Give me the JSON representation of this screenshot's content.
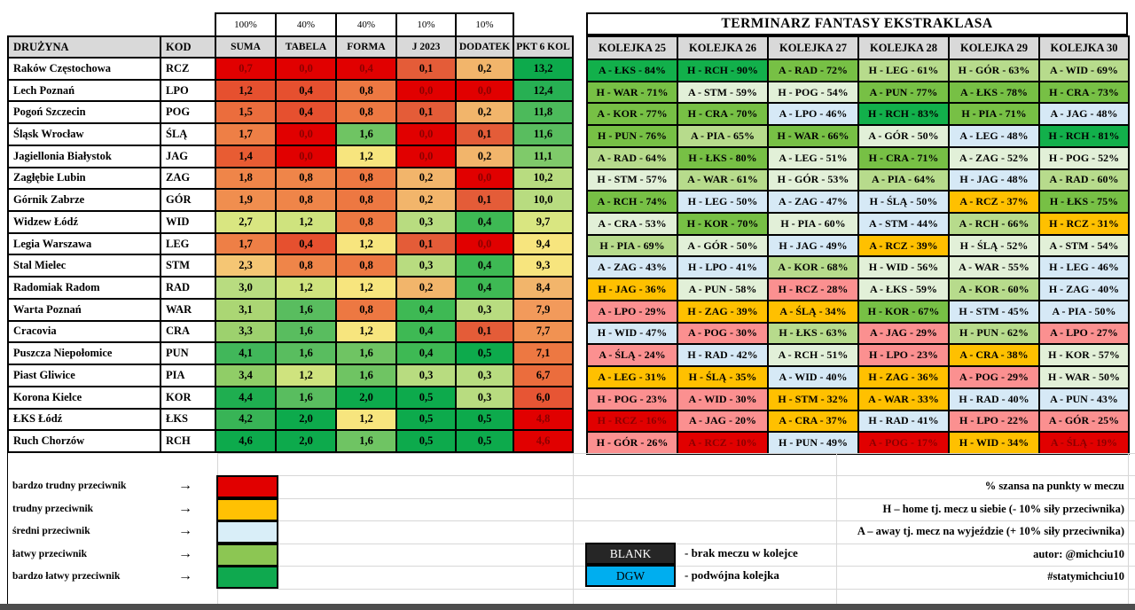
{
  "palette": {
    "RD": "#e10000",
    "R1": "#e75534",
    "R2": "#e6502f",
    "R3": "#e45c38",
    "R4": "#e85c33",
    "O1": "#eb6d3d",
    "O2": "#ed7842",
    "O3": "#ee7f46",
    "O4": "#ef8549",
    "O5": "#f08e4f",
    "O6": "#f19252",
    "O7": "#f29a5b",
    "T1": "#f2b56b",
    "T2": "#f5c674",
    "Y1": "#f7e57e",
    "Y2": "#d9e681",
    "Y3": "#cfe37e",
    "L1": "#b8dc80",
    "L2": "#abd674",
    "L3": "#9dd16e",
    "L4": "#90cd67",
    "L5": "#7fca6a",
    "G1": "#6fc463",
    "G2": "#59bd5f",
    "G3": "#4cba5b",
    "G4": "#3eb954",
    "G5": "#41b75a",
    "G6": "#38b456",
    "G7": "#27b053",
    "G8": "#1fae50",
    "DG": "#0daa4c",
    "SG": "#12b04b",
    "AG": "#77c045",
    "LG": "#b7db8c",
    "PG": "#e2f0d8",
    "BL": "#d6e9f6",
    "AM": "#ffc000",
    "PK": "#fb9090",
    "RR": "#e10000",
    "dark_text": "#8b0000",
    "header_bg": "#d9d9d9"
  },
  "weights": [
    "100%",
    "40%",
    "40%",
    "10%",
    "10%"
  ],
  "left_table": {
    "headers": [
      "DRUŻYNA",
      "KOD",
      "SUMA",
      "TABELA",
      "FORMA",
      "J 2023",
      "DODATEK",
      "PKT 6 KOL"
    ],
    "rows": [
      {
        "team": "Raków Częstochowa",
        "kod": "RCZ",
        "vals": [
          [
            "0,7",
            "RD"
          ],
          [
            "0,0",
            "RD"
          ],
          [
            "0,4",
            "RD"
          ],
          [
            "0,1",
            "R3"
          ],
          [
            "0,2",
            "T1"
          ],
          [
            "13,2",
            "DG"
          ]
        ]
      },
      {
        "team": "Lech Poznań",
        "kod": "LPO",
        "vals": [
          [
            "1,2",
            "R2"
          ],
          [
            "0,4",
            "R2"
          ],
          [
            "0,8",
            "O2"
          ],
          [
            "0,0",
            "RD"
          ],
          [
            "0,0",
            "RD"
          ],
          [
            "12,4",
            "G7"
          ]
        ]
      },
      {
        "team": "Pogoń Szczecin",
        "kod": "POG",
        "vals": [
          [
            "1,5",
            "O1"
          ],
          [
            "0,4",
            "R2"
          ],
          [
            "0,8",
            "O2"
          ],
          [
            "0,1",
            "R3"
          ],
          [
            "0,2",
            "T1"
          ],
          [
            "11,8",
            "G3"
          ]
        ]
      },
      {
        "team": "Śląsk Wrocław",
        "kod": "ŚLĄ",
        "vals": [
          [
            "1,7",
            "O3"
          ],
          [
            "0,0",
            "RD"
          ],
          [
            "1,6",
            "G1"
          ],
          [
            "0,0",
            "RD"
          ],
          [
            "0,1",
            "R3"
          ],
          [
            "11,6",
            "G2"
          ]
        ]
      },
      {
        "team": "Jagiellonia Białystok",
        "kod": "JAG",
        "vals": [
          [
            "1,4",
            "R4"
          ],
          [
            "0,0",
            "RD"
          ],
          [
            "1,2",
            "Y1"
          ],
          [
            "0,0",
            "RD"
          ],
          [
            "0,2",
            "T1"
          ],
          [
            "11,1",
            "L5"
          ]
        ]
      },
      {
        "team": "Zagłębie Lubin",
        "kod": "ZAG",
        "vals": [
          [
            "1,8",
            "O4"
          ],
          [
            "0,8",
            "O4"
          ],
          [
            "0,8",
            "O2"
          ],
          [
            "0,2",
            "T1"
          ],
          [
            "0,0",
            "RD"
          ],
          [
            "10,2",
            "L1"
          ]
        ]
      },
      {
        "team": "Górnik Zabrze",
        "kod": "GÓR",
        "vals": [
          [
            "1,9",
            "O5"
          ],
          [
            "0,8",
            "O4"
          ],
          [
            "0,8",
            "O2"
          ],
          [
            "0,2",
            "T1"
          ],
          [
            "0,1",
            "R3"
          ],
          [
            "10,0",
            "L1"
          ]
        ]
      },
      {
        "team": "Widzew Łódź",
        "kod": "WID",
        "vals": [
          [
            "2,7",
            "Y2"
          ],
          [
            "1,2",
            "Y3"
          ],
          [
            "0,8",
            "O2"
          ],
          [
            "0,3",
            "L1"
          ],
          [
            "0,4",
            "G4"
          ],
          [
            "9,7",
            "Y2"
          ]
        ]
      },
      {
        "team": "Legia Warszawa",
        "kod": "LEG",
        "vals": [
          [
            "1,7",
            "O3"
          ],
          [
            "0,4",
            "R2"
          ],
          [
            "1,2",
            "Y1"
          ],
          [
            "0,1",
            "R3"
          ],
          [
            "0,0",
            "RD"
          ],
          [
            "9,4",
            "Y1"
          ]
        ]
      },
      {
        "team": "Stal Mielec",
        "kod": "STM",
        "vals": [
          [
            "2,3",
            "T2"
          ],
          [
            "0,8",
            "O4"
          ],
          [
            "0,8",
            "O2"
          ],
          [
            "0,3",
            "L1"
          ],
          [
            "0,4",
            "G4"
          ],
          [
            "9,3",
            "Y1"
          ]
        ]
      },
      {
        "team": "Radomiak Radom",
        "kod": "RAD",
        "vals": [
          [
            "3,0",
            "L1"
          ],
          [
            "1,2",
            "Y3"
          ],
          [
            "1,2",
            "Y1"
          ],
          [
            "0,2",
            "T1"
          ],
          [
            "0,4",
            "G4"
          ],
          [
            "8,4",
            "T1"
          ]
        ]
      },
      {
        "team": "Warta Poznań",
        "kod": "WAR",
        "vals": [
          [
            "3,1",
            "L2"
          ],
          [
            "1,6",
            "G2"
          ],
          [
            "0,8",
            "O2"
          ],
          [
            "0,4",
            "G4"
          ],
          [
            "0,3",
            "L1"
          ],
          [
            "7,9",
            "O7"
          ]
        ]
      },
      {
        "team": "Cracovia",
        "kod": "CRA",
        "vals": [
          [
            "3,3",
            "L3"
          ],
          [
            "1,6",
            "G2"
          ],
          [
            "1,2",
            "Y1"
          ],
          [
            "0,4",
            "G4"
          ],
          [
            "0,1",
            "R3"
          ],
          [
            "7,7",
            "O6"
          ]
        ]
      },
      {
        "team": "Puszcza Niepołomice",
        "kod": "PUN",
        "vals": [
          [
            "4,1",
            "G5"
          ],
          [
            "1,6",
            "G2"
          ],
          [
            "1,6",
            "G1"
          ],
          [
            "0,4",
            "G4"
          ],
          [
            "0,5",
            "DG"
          ],
          [
            "7,1",
            "O2"
          ]
        ]
      },
      {
        "team": "Piast Gliwice",
        "kod": "PIA",
        "vals": [
          [
            "3,4",
            "L4"
          ],
          [
            "1,2",
            "Y3"
          ],
          [
            "1,6",
            "G1"
          ],
          [
            "0,3",
            "L1"
          ],
          [
            "0,3",
            "L1"
          ],
          [
            "6,7",
            "O1"
          ]
        ]
      },
      {
        "team": "Korona Kielce",
        "kod": "KOR",
        "vals": [
          [
            "4,4",
            "G8"
          ],
          [
            "1,6",
            "G2"
          ],
          [
            "2,0",
            "DG"
          ],
          [
            "0,5",
            "DG"
          ],
          [
            "0,3",
            "L1"
          ],
          [
            "6,0",
            "R1"
          ]
        ]
      },
      {
        "team": "ŁKS Łódź",
        "kod": "ŁKS",
        "vals": [
          [
            "4,2",
            "G6"
          ],
          [
            "2,0",
            "DG"
          ],
          [
            "1,2",
            "Y1"
          ],
          [
            "0,5",
            "DG"
          ],
          [
            "0,5",
            "DG"
          ],
          [
            "4,8",
            "RD"
          ]
        ]
      },
      {
        "team": "Ruch Chorzów",
        "kod": "RCH",
        "vals": [
          [
            "4,6",
            "DG"
          ],
          [
            "2,0",
            "DG"
          ],
          [
            "1,6",
            "G1"
          ],
          [
            "0,5",
            "DG"
          ],
          [
            "0,5",
            "DG"
          ],
          [
            "4,6",
            "RD"
          ]
        ]
      }
    ]
  },
  "right_table": {
    "title": "TERMINARZ FANTASY EKSTRAKLASA",
    "headers": [
      "KOLEJKA 25",
      "KOLEJKA 26",
      "KOLEJKA 27",
      "KOLEJKA 28",
      "KOLEJKA 29",
      "KOLEJKA 30"
    ],
    "rows": [
      [
        [
          "A - ŁKS - 84%",
          "SG"
        ],
        [
          "H - RCH - 90%",
          "SG"
        ],
        [
          "A - RAD - 72%",
          "AG"
        ],
        [
          "H - LEG - 61%",
          "LG"
        ],
        [
          "H - GÓR - 63%",
          "LG"
        ],
        [
          "A - WID - 69%",
          "LG"
        ]
      ],
      [
        [
          "H - WAR - 71%",
          "AG"
        ],
        [
          "A - STM - 59%",
          "PG"
        ],
        [
          "H - POG - 54%",
          "PG"
        ],
        [
          "A - PUN - 77%",
          "AG"
        ],
        [
          "A - ŁKS - 78%",
          "AG"
        ],
        [
          "H - CRA - 73%",
          "AG"
        ]
      ],
      [
        [
          "A - KOR - 77%",
          "AG"
        ],
        [
          "H - CRA - 70%",
          "AG"
        ],
        [
          "A - LPO - 46%",
          "BL"
        ],
        [
          "H - RCH - 83%",
          "SG"
        ],
        [
          "H - PIA - 71%",
          "AG"
        ],
        [
          "A - JAG - 48%",
          "BL"
        ]
      ],
      [
        [
          "H - PUN - 76%",
          "AG"
        ],
        [
          "A - PIA - 65%",
          "LG"
        ],
        [
          "H - WAR - 66%",
          "AG"
        ],
        [
          "A - GÓR - 50%",
          "PG"
        ],
        [
          "A - LEG - 48%",
          "BL"
        ],
        [
          "H - RCH - 81%",
          "SG"
        ]
      ],
      [
        [
          "A - RAD - 64%",
          "LG"
        ],
        [
          "H - ŁKS - 80%",
          "AG"
        ],
        [
          "A - LEG - 51%",
          "PG"
        ],
        [
          "H - CRA - 71%",
          "AG"
        ],
        [
          "A - ZAG - 52%",
          "PG"
        ],
        [
          "H - POG - 52%",
          "PG"
        ]
      ],
      [
        [
          "H - STM - 57%",
          "PG"
        ],
        [
          "A - WAR - 61%",
          "LG"
        ],
        [
          "H - GÓR - 53%",
          "PG"
        ],
        [
          "A - PIA - 64%",
          "LG"
        ],
        [
          "H - JAG - 48%",
          "BL"
        ],
        [
          "A - RAD - 60%",
          "LG"
        ]
      ],
      [
        [
          "A - RCH - 74%",
          "AG"
        ],
        [
          "H - LEG - 50%",
          "BL"
        ],
        [
          "A - ZAG - 47%",
          "BL"
        ],
        [
          "H - ŚLĄ - 50%",
          "BL"
        ],
        [
          "A - RCZ - 37%",
          "AM"
        ],
        [
          "H - ŁKS - 75%",
          "AG"
        ]
      ],
      [
        [
          "A - CRA - 53%",
          "PG"
        ],
        [
          "H - KOR - 70%",
          "AG"
        ],
        [
          "H - PIA - 60%",
          "PG"
        ],
        [
          "A - STM - 44%",
          "BL"
        ],
        [
          "A - RCH - 66%",
          "LG"
        ],
        [
          "H - RCZ - 31%",
          "AM"
        ]
      ],
      [
        [
          "H - PIA - 69%",
          "LG"
        ],
        [
          "A - GÓR - 50%",
          "PG"
        ],
        [
          "H - JAG - 49%",
          "BL"
        ],
        [
          "A - RCZ - 39%",
          "AM"
        ],
        [
          "H - ŚLĄ - 52%",
          "PG"
        ],
        [
          "A - STM - 54%",
          "PG"
        ]
      ],
      [
        [
          "A - ZAG - 43%",
          "BL"
        ],
        [
          "H - LPO - 41%",
          "BL"
        ],
        [
          "A - KOR - 68%",
          "LG"
        ],
        [
          "H - WID - 56%",
          "PG"
        ],
        [
          "A - WAR - 55%",
          "PG"
        ],
        [
          "H - LEG - 46%",
          "BL"
        ]
      ],
      [
        [
          "H - JAG - 36%",
          "AM"
        ],
        [
          "A - PUN - 58%",
          "PG"
        ],
        [
          "H - RCZ - 28%",
          "PK"
        ],
        [
          "A - ŁKS - 59%",
          "PG"
        ],
        [
          "A - KOR - 60%",
          "LG"
        ],
        [
          "H - ZAG - 40%",
          "BL"
        ]
      ],
      [
        [
          "A - LPO - 29%",
          "PK"
        ],
        [
          "H - ZAG - 39%",
          "AM"
        ],
        [
          "A - ŚLĄ - 34%",
          "AM"
        ],
        [
          "H - KOR - 67%",
          "AG"
        ],
        [
          "H - STM - 45%",
          "BL"
        ],
        [
          "A - PIA - 50%",
          "BL"
        ]
      ],
      [
        [
          "H - WID - 47%",
          "BL"
        ],
        [
          "A - POG - 30%",
          "PK"
        ],
        [
          "H - ŁKS - 63%",
          "LG"
        ],
        [
          "A - JAG - 29%",
          "PK"
        ],
        [
          "H - PUN - 62%",
          "LG"
        ],
        [
          "A - LPO - 27%",
          "PK"
        ]
      ],
      [
        [
          "A - ŚLĄ - 24%",
          "PK"
        ],
        [
          "H - RAD - 42%",
          "BL"
        ],
        [
          "A - RCH - 51%",
          "PG"
        ],
        [
          "H - LPO - 23%",
          "PK"
        ],
        [
          "A - CRA - 38%",
          "AM"
        ],
        [
          "H - KOR - 57%",
          "PG"
        ]
      ],
      [
        [
          "A - LEG - 31%",
          "AM"
        ],
        [
          "H - ŚLĄ - 35%",
          "AM"
        ],
        [
          "A - WID - 40%",
          "BL"
        ],
        [
          "H - ZAG - 36%",
          "AM"
        ],
        [
          "A - POG - 29%",
          "PK"
        ],
        [
          "H - WAR - 50%",
          "PG"
        ]
      ],
      [
        [
          "H - POG - 23%",
          "PK"
        ],
        [
          "A - WID - 30%",
          "PK"
        ],
        [
          "H - STM - 32%",
          "AM"
        ],
        [
          "A - WAR - 33%",
          "AM"
        ],
        [
          "H - RAD - 40%",
          "BL"
        ],
        [
          "A - PUN - 43%",
          "BL"
        ]
      ],
      [
        [
          "H - RCZ - 16%",
          "RR"
        ],
        [
          "A - JAG - 20%",
          "PK"
        ],
        [
          "A - CRA - 37%",
          "AM"
        ],
        [
          "H - RAD - 41%",
          "BL"
        ],
        [
          "H - LPO - 22%",
          "PK"
        ],
        [
          "A - GÓR - 25%",
          "PK"
        ]
      ],
      [
        [
          "H - GÓR - 26%",
          "PK"
        ],
        [
          "A - RCZ - 10%",
          "RR"
        ],
        [
          "H - PUN - 49%",
          "BL"
        ],
        [
          "A - POG - 17%",
          "RR"
        ],
        [
          "H - WID - 34%",
          "AM"
        ],
        [
          "A - ŚLĄ - 19%",
          "RR"
        ]
      ]
    ]
  },
  "legend": {
    "arrow": "→",
    "items": [
      {
        "label": "bardzo trudny przeciwnik",
        "color": "#e10000"
      },
      {
        "label": "trudny przeciwnik",
        "color": "#ffc103"
      },
      {
        "label": "średni przeciwnik",
        "color": "#d9eef8"
      },
      {
        "label": "łatwy przeciwnik",
        "color": "#8cc653"
      },
      {
        "label": "bardzo łatwy przeciwnik",
        "color": "#0fa94f"
      }
    ],
    "blank": {
      "label": "BLANK",
      "desc": "- brak meczu w kolejce",
      "bg": "#262626",
      "fg": "#ffffff"
    },
    "dgw": {
      "label": "DGW",
      "desc": "- podwójna kolejka",
      "bg": "#00aeef",
      "fg": "#000000"
    }
  },
  "notes": [
    "% szansa na punkty w meczu",
    "H – home tj. mecz u siebie (- 10% siły przeciwnika)",
    "A – away tj. mecz na wyjeździe (+ 10% siły przeciwnika)",
    "autor: @michciu10",
    "#statymichciu10"
  ]
}
